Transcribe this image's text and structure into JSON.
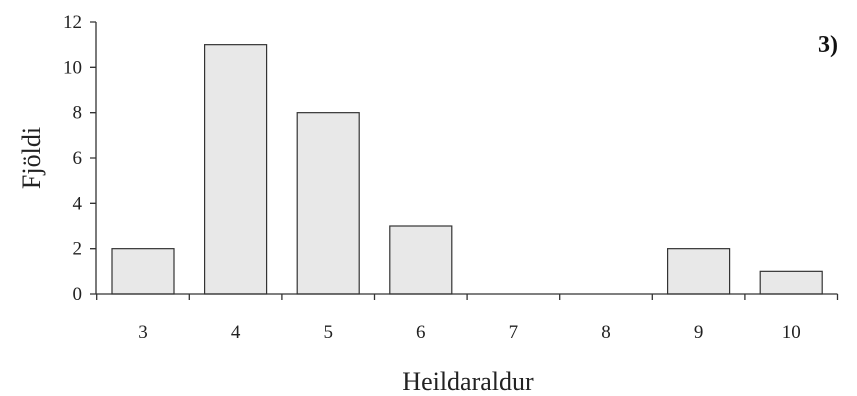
{
  "chart_data": {
    "type": "bar",
    "panel_label": "3)",
    "xlabel": "Heildaraldur",
    "ylabel": "Fjöldi",
    "categories": [
      "3",
      "4",
      "5",
      "6",
      "7",
      "8",
      "9",
      "10"
    ],
    "values": [
      2,
      11,
      8,
      3,
      0,
      0,
      2,
      1
    ],
    "ylim": [
      0,
      12
    ],
    "yticks": [
      "0",
      "2",
      "4",
      "6",
      "8",
      "10",
      "12"
    ],
    "grid": false,
    "colors": {
      "bar_fill": "#e8e8e8",
      "bar_stroke": "#333333"
    }
  }
}
